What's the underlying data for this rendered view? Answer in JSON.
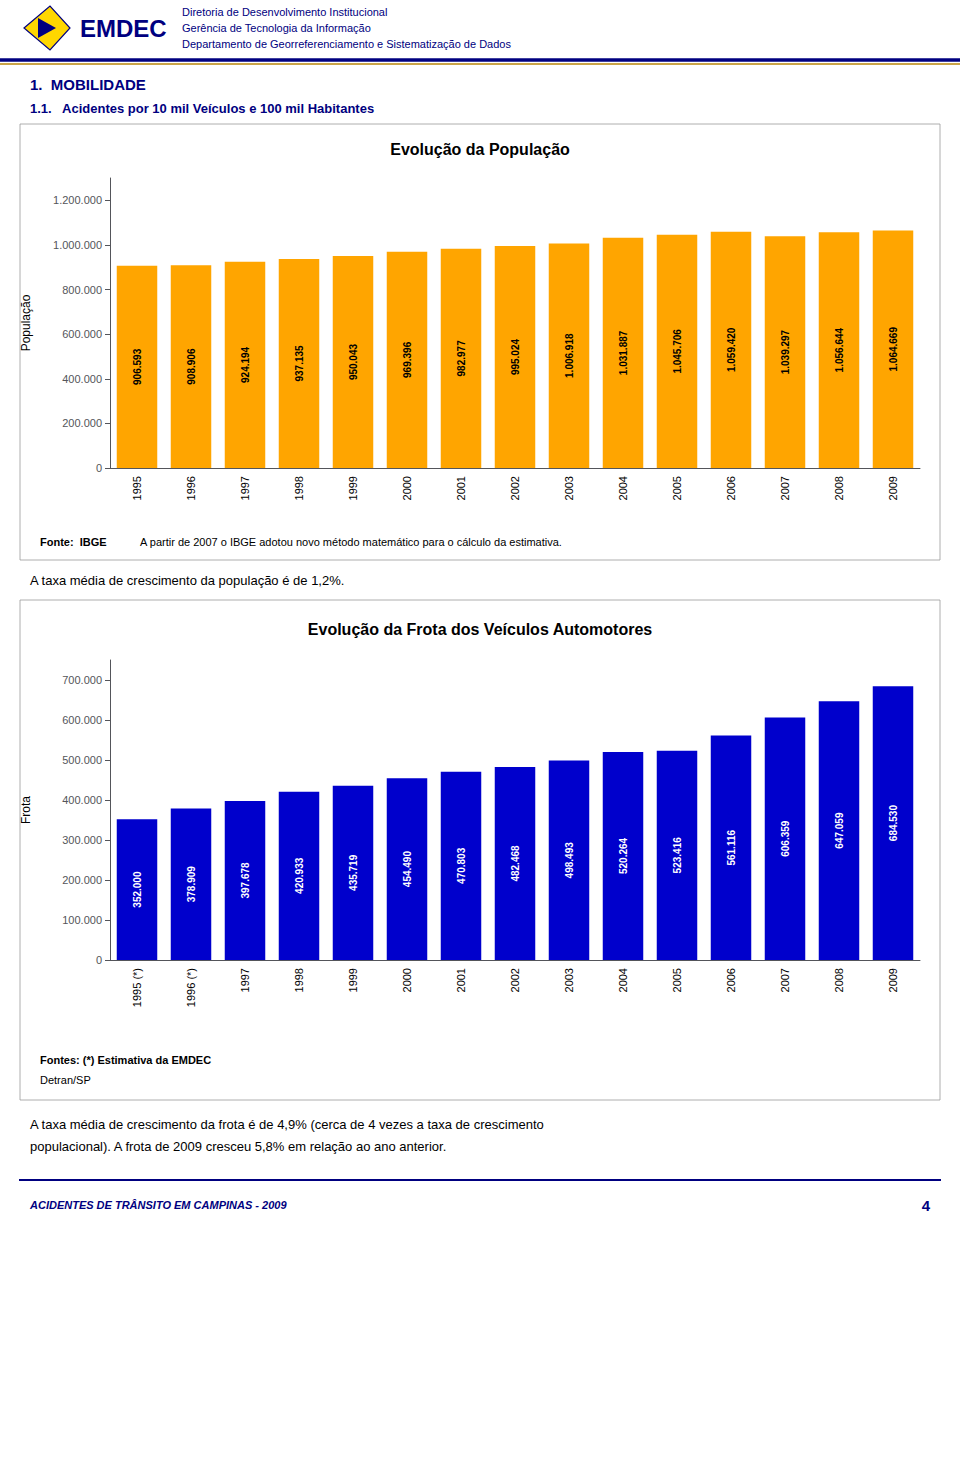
{
  "chart_data": [
    {
      "type": "bar",
      "title": "Evolução da População",
      "ylabel": "População",
      "categories": [
        "1995",
        "1996",
        "1997",
        "1998",
        "1999",
        "2000",
        "2001",
        "2002",
        "2003",
        "2004",
        "2005",
        "2006",
        "2007",
        "2008",
        "2009"
      ],
      "values": [
        906593,
        908906,
        924194,
        937135,
        950043,
        969396,
        982977,
        995024,
        1006918,
        1031887,
        1045706,
        1059420,
        1039297,
        1056644,
        1064669
      ],
      "value_labels": [
        "906.593",
        "908.906",
        "924.194",
        "937.135",
        "950.043",
        "969.396",
        "982.977",
        "995.024",
        "1.006.918",
        "1.031.887",
        "1.045.706",
        "1.059.420",
        "1.039.297",
        "1.056.644",
        "1.064.669"
      ],
      "data_labels": true,
      "color": "#FFA500",
      "ylim": [
        0,
        1300000
      ],
      "yticks": [
        0,
        {
          "value": 200000,
          "label": "200.000"
        },
        {
          "value": 400000,
          "label": "400.000"
        },
        {
          "value": 600000,
          "label": "600.000"
        },
        {
          "value": 800000,
          "label": "800.000"
        },
        {
          "value": 1000000,
          "label": "1.000.000"
        },
        {
          "value": 1200000,
          "label": "1.200.000"
        }
      ],
      "grid": false,
      "annotations": [
        "EMDEC",
        "Diretoria de Desenvolvimento Institucional",
        "Gerência de Tecnologia da Informação",
        "Departamento de Georreferenciamento e Sistematização de Dados",
        "1.  MOBILIDADE",
        "1.1.   Acidentes por 10 mil Veículos e 100 mil Habitantes",
        "Fonte:  IBGE",
        "A partir de 2007 o IBGE adotou novo método matemático para o cálculo da estimativa.",
        "A taxa média de crescimento da população é de 1,2%."
      ]
    },
    {
      "type": "bar",
      "title": "Evolução da Frota dos Veículos Automotores",
      "ylabel": "Frota",
      "categories": [
        "1995 (*)",
        "1996 (*)",
        "1997",
        "1998",
        "1999",
        "2000",
        "2001",
        "2002",
        "2003",
        "2004",
        "2005",
        "2006",
        "2007",
        "2008",
        "2009"
      ],
      "values": [
        352000,
        378909,
        397678,
        420933,
        435719,
        454490,
        470803,
        482468,
        498493,
        520264,
        523416,
        561116,
        606359,
        647059,
        684530
      ],
      "value_labels": [
        "352.000",
        "378.909",
        "397.678",
        "420.933",
        "435.719",
        "454.490",
        "470.803",
        "482.468",
        "498.493",
        "520.264",
        "523.416",
        "561.116",
        "606.359",
        "647.059",
        "684.530"
      ],
      "data_labels": true,
      "color": "#0000CC",
      "ylim": [
        0,
        750000
      ],
      "yticks": [
        0,
        {
          "value": 100000,
          "label": "100.000"
        },
        {
          "value": 200000,
          "label": "200.000"
        },
        {
          "value": 300000,
          "label": "300.000"
        },
        {
          "value": 400000,
          "label": "400.000"
        },
        {
          "value": 500000,
          "label": "500.000"
        },
        {
          "value": 600000,
          "label": "600.000"
        },
        {
          "value": 700000,
          "label": "700.000"
        }
      ],
      "grid": false,
      "annotations": [
        "Fontes: (*) Estimativa da EMDEC",
        "Detran/SP",
        "A taxa média de crescimento da frota é de 4,9% (cerca de 4 vezes a taxa de crescimento",
        "populacional). A frota de 2009 cresceu 5,8% em relação ao ano anterior.",
        "ACIDENTES DE TRÂNSITO EM CAMPINAS - 2009",
        "4"
      ]
    }
  ]
}
